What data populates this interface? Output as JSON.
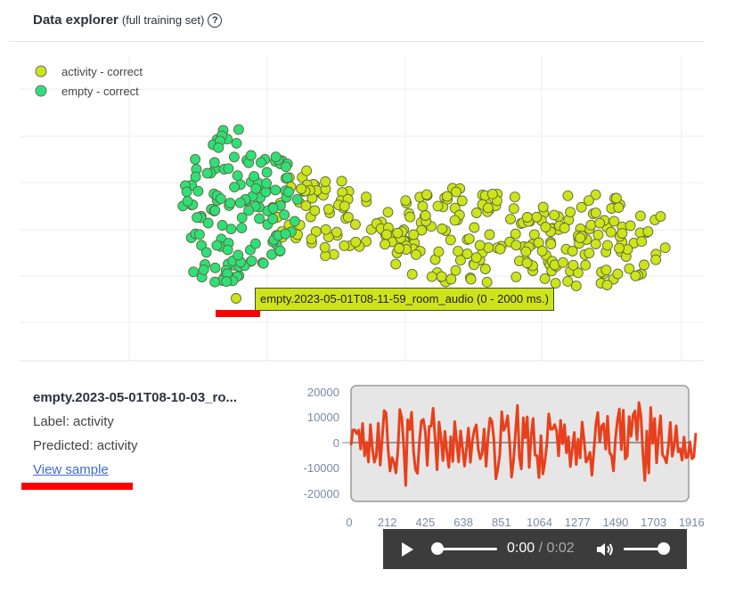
{
  "header": {
    "title": "Data explorer",
    "subtitle": "(full training set)",
    "help_icon": "question-circle-icon"
  },
  "legend": [
    {
      "label": "activity - correct",
      "color": "#cde41b"
    },
    {
      "label": "empty - correct",
      "color": "#2fe07a"
    }
  ],
  "tooltip": "empty.2023-05-01T08-11-59_room_audio (0 - 2000 ms.)",
  "sample": {
    "name": "empty.2023-05-01T08-10-03_ro...",
    "label": "Label: activity",
    "predicted": "Predicted: activity",
    "view_link": "View sample"
  },
  "waveform": {
    "y_ticks": [
      "20000",
      "10000",
      "0",
      "-10000",
      "-20000"
    ],
    "x_ticks": [
      "0",
      "212",
      "425",
      "638",
      "851",
      "1064",
      "1277",
      "1490",
      "1703",
      "1916"
    ],
    "line_color": "#e8401c"
  },
  "player": {
    "current_time": "0:00",
    "separator": " / ",
    "duration": "0:02"
  },
  "colors": {
    "annotation": "#ff0000"
  }
}
